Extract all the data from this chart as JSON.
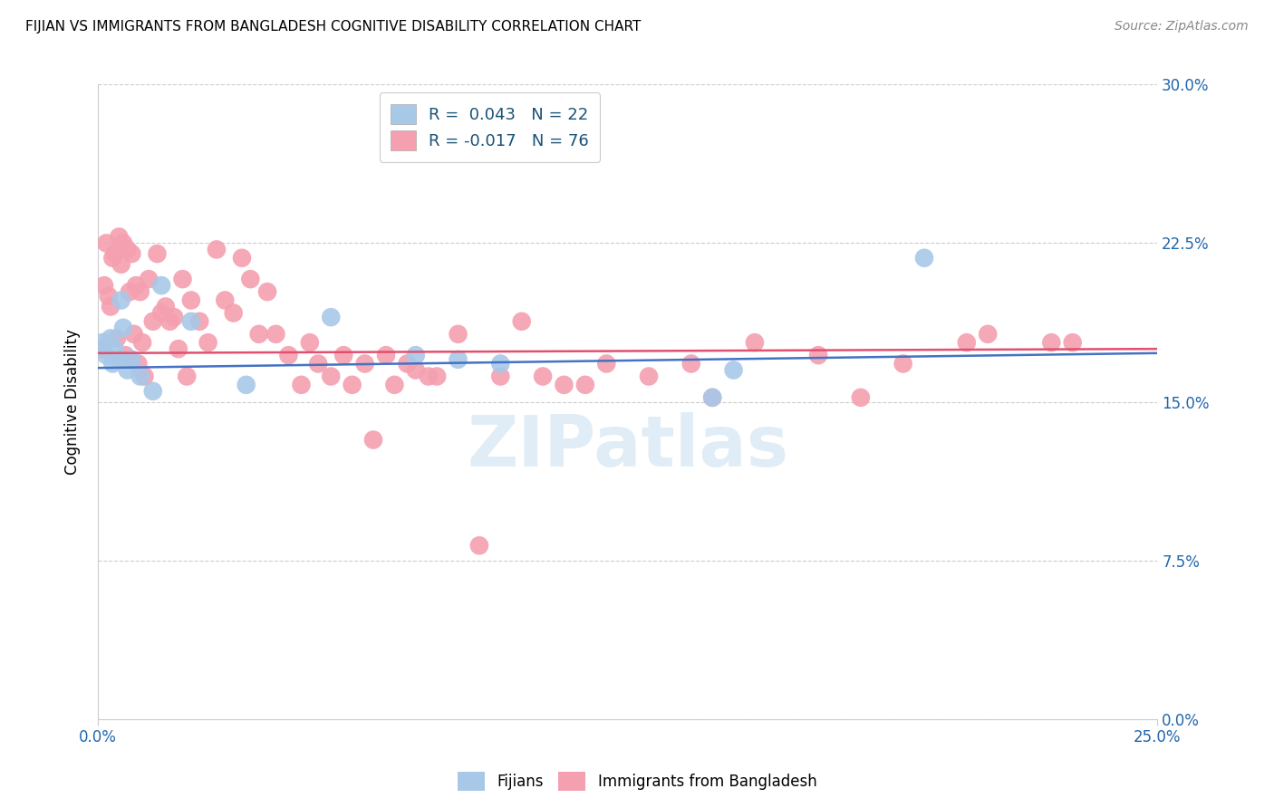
{
  "title": "FIJIAN VS IMMIGRANTS FROM BANGLADESH COGNITIVE DISABILITY CORRELATION CHART",
  "source": "Source: ZipAtlas.com",
  "ylabel": "Cognitive Disability",
  "xlim": [
    0.0,
    25.0
  ],
  "ylim": [
    0.0,
    30.0
  ],
  "yticks": [
    0.0,
    7.5,
    15.0,
    22.5,
    30.0
  ],
  "xtick_positions": [
    0.0,
    25.0
  ],
  "xtick_labels": [
    "0.0%",
    "25.0%"
  ],
  "fijians_R": 0.043,
  "fijians_N": 22,
  "bangladesh_R": -0.017,
  "bangladesh_N": 76,
  "blue_color": "#a8c8e8",
  "pink_color": "#f4a0b0",
  "blue_line_color": "#4472c4",
  "pink_line_color": "#e05070",
  "legend_label_fijians": "Fijians",
  "legend_label_bangladesh": "Immigrants from Bangladesh",
  "watermark": "ZIPatlas",
  "fijians_x": [
    0.1,
    0.2,
    0.3,
    0.35,
    0.4,
    0.5,
    0.55,
    0.6,
    0.7,
    0.8,
    1.0,
    1.3,
    1.5,
    2.2,
    3.5,
    5.5,
    7.5,
    8.5,
    9.5,
    14.5,
    15.0,
    19.5
  ],
  "fijians_y": [
    17.8,
    17.2,
    18.0,
    16.8,
    17.5,
    17.0,
    19.8,
    18.5,
    16.5,
    17.0,
    16.2,
    15.5,
    20.5,
    18.8,
    15.8,
    19.0,
    17.2,
    17.0,
    16.8,
    15.2,
    16.5,
    21.8
  ],
  "bangladesh_x": [
    0.1,
    0.15,
    0.2,
    0.25,
    0.3,
    0.35,
    0.4,
    0.45,
    0.5,
    0.55,
    0.6,
    0.65,
    0.7,
    0.75,
    0.8,
    0.85,
    0.9,
    0.95,
    1.0,
    1.05,
    1.1,
    1.2,
    1.3,
    1.4,
    1.5,
    1.6,
    1.7,
    1.8,
    1.9,
    2.0,
    2.1,
    2.2,
    2.4,
    2.6,
    2.8,
    3.0,
    3.2,
    3.4,
    3.6,
    3.8,
    4.0,
    4.2,
    4.5,
    4.8,
    5.0,
    5.2,
    5.5,
    5.8,
    6.0,
    6.3,
    6.5,
    6.8,
    7.0,
    7.3,
    7.5,
    7.8,
    8.0,
    8.5,
    9.0,
    9.5,
    10.0,
    10.5,
    11.0,
    11.5,
    12.0,
    13.0,
    14.0,
    14.5,
    15.5,
    17.0,
    18.0,
    19.0,
    20.5,
    21.0,
    22.5,
    23.0
  ],
  "bangladesh_y": [
    17.5,
    20.5,
    22.5,
    20.0,
    19.5,
    21.8,
    22.0,
    18.0,
    22.8,
    21.5,
    22.5,
    17.2,
    22.2,
    20.2,
    22.0,
    18.2,
    20.5,
    16.8,
    20.2,
    17.8,
    16.2,
    20.8,
    18.8,
    22.0,
    19.2,
    19.5,
    18.8,
    19.0,
    17.5,
    20.8,
    16.2,
    19.8,
    18.8,
    17.8,
    22.2,
    19.8,
    19.2,
    21.8,
    20.8,
    18.2,
    20.2,
    18.2,
    17.2,
    15.8,
    17.8,
    16.8,
    16.2,
    17.2,
    15.8,
    16.8,
    13.2,
    17.2,
    15.8,
    16.8,
    16.5,
    16.2,
    16.2,
    18.2,
    8.2,
    16.2,
    18.8,
    16.2,
    15.8,
    15.8,
    16.8,
    16.2,
    16.8,
    15.2,
    17.8,
    17.2,
    15.2,
    16.8,
    17.8,
    18.2,
    17.8,
    17.8
  ]
}
